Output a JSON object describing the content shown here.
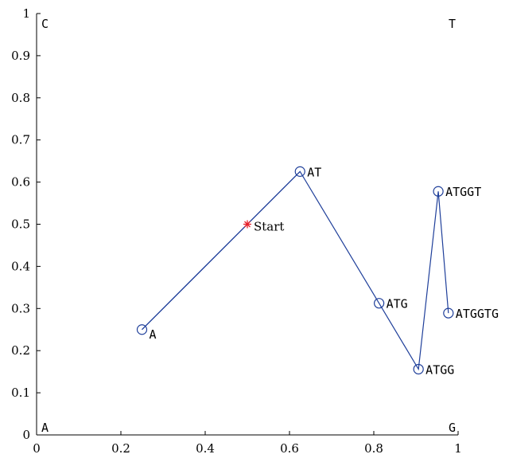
{
  "chart_data": {
    "type": "line",
    "xlim": [
      0,
      1
    ],
    "ylim": [
      0,
      1
    ],
    "x_ticks": [
      0,
      0.2,
      0.4,
      0.6,
      0.8,
      1
    ],
    "y_ticks": [
      0,
      0.1,
      0.2,
      0.3,
      0.4,
      0.5,
      0.6,
      0.7,
      0.8,
      0.9,
      1
    ],
    "x_tick_labels": [
      "0",
      "0.2",
      "0.4",
      "0.6",
      "0.8",
      "1"
    ],
    "y_tick_labels": [
      "0",
      "0.1",
      "0.2",
      "0.3",
      "0.4",
      "0.5",
      "0.6",
      "0.7",
      "0.8",
      "0.9",
      "1"
    ],
    "grid": false,
    "corner_labels": [
      {
        "text": "A",
        "x": 0,
        "y": 0
      },
      {
        "text": "G",
        "x": 1,
        "y": 0
      },
      {
        "text": "C",
        "x": 0,
        "y": 1
      },
      {
        "text": "T",
        "x": 1,
        "y": 1
      }
    ],
    "start": {
      "label": "Start",
      "x": 0.5,
      "y": 0.5
    },
    "series": [
      {
        "points": [
          {
            "label": "A",
            "x": 0.25,
            "y": 0.25
          },
          {
            "label": "AT",
            "x": 0.625,
            "y": 0.625
          },
          {
            "label": "ATG",
            "x": 0.8125,
            "y": 0.3125
          },
          {
            "label": "ATGG",
            "x": 0.906,
            "y": 0.156
          },
          {
            "label": "ATGGT",
            "x": 0.953,
            "y": 0.578
          },
          {
            "label": "ATGGTG",
            "x": 0.977,
            "y": 0.289
          }
        ]
      }
    ]
  },
  "colors": {
    "series": "#1f3f9a",
    "start_marker": "#e8202a",
    "axis": "#000000"
  }
}
